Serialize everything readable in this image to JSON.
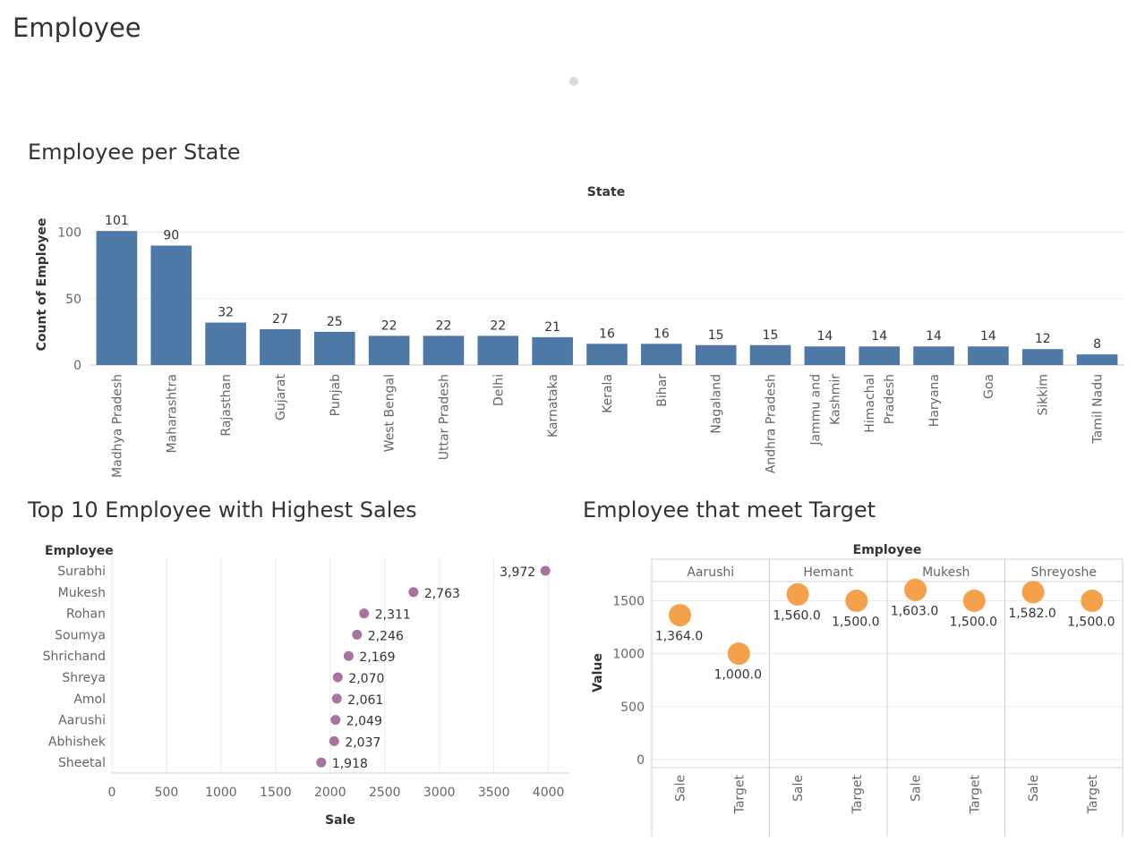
{
  "dashboard_title": "Employee",
  "chart_data": [
    {
      "type": "bar",
      "title": "Employee per State",
      "header": "State",
      "ylabel": "Count of Employee",
      "yticks": [
        "0",
        "50",
        "100"
      ],
      "ylim": [
        0,
        120
      ],
      "categories": [
        "Madhya Pradesh",
        "Maharashtra",
        "Rajasthan",
        "Gujarat",
        "Punjab",
        "West Bengal",
        "Uttar Pradesh",
        "Delhi",
        "Karnataka",
        "Kerala",
        "Bihar",
        "Nagaland",
        "Andhra Pradesh",
        "Jammu and Kashmir",
        "Himachal Pradesh",
        "Haryana",
        "Goa",
        "Sikkim",
        "Tamil Nadu"
      ],
      "category_lines": [
        [
          "Madhya Pradesh"
        ],
        [
          "Maharashtra"
        ],
        [
          "Rajasthan"
        ],
        [
          "Gujarat"
        ],
        [
          "Punjab"
        ],
        [
          "West Bengal"
        ],
        [
          "Uttar Pradesh"
        ],
        [
          "Delhi"
        ],
        [
          "Karnataka"
        ],
        [
          "Kerala"
        ],
        [
          "Bihar"
        ],
        [
          "Nagaland"
        ],
        [
          "Andhra Pradesh"
        ],
        [
          "Jammu and",
          "Kashmir"
        ],
        [
          "Himachal",
          "Pradesh"
        ],
        [
          "Haryana"
        ],
        [
          "Goa"
        ],
        [
          "Sikkim"
        ],
        [
          "Tamil Nadu"
        ]
      ],
      "values": [
        101,
        90,
        32,
        27,
        25,
        22,
        22,
        22,
        21,
        16,
        16,
        15,
        15,
        14,
        14,
        14,
        14,
        12,
        8
      ],
      "data_labels": [
        "101",
        "90",
        "32",
        "27",
        "25",
        "22",
        "22",
        "22",
        "21",
        "16",
        "16",
        "15",
        "15",
        "14",
        "14",
        "14",
        "14",
        "12",
        "8"
      ],
      "color": "#4e79a7",
      "grid": true
    },
    {
      "type": "scatter",
      "title": "Top 10 Employee with Highest Sales",
      "row_header": "Employee",
      "xlabel": "Sale",
      "xticks": [
        "0",
        "500",
        "1000",
        "1500",
        "2000",
        "2500",
        "3000",
        "3500",
        "4000"
      ],
      "xlim": [
        0,
        4200
      ],
      "categories": [
        "Surabhi",
        "Mukesh",
        "Rohan",
        "Soumya",
        "Shrichand",
        "Shreya",
        "Amol",
        "Aarushi",
        "Abhishek",
        "Sheetal"
      ],
      "values": [
        3972,
        2763,
        2311,
        2246,
        2169,
        2070,
        2061,
        2049,
        2037,
        1918
      ],
      "data_labels": [
        "3,972",
        "2,763",
        "2,311",
        "2,246",
        "2,169",
        "2,070",
        "2,061",
        "2,049",
        "2,037",
        "1,918"
      ],
      "color": "#a8739f",
      "grid": true
    },
    {
      "type": "scatter",
      "title": "Employee that meet Target",
      "header": "Employee",
      "ylabel": "Value",
      "yticks": [
        "0",
        "500",
        "1000",
        "1500"
      ],
      "ylim": [
        0,
        1800
      ],
      "groups": [
        "Aarushi",
        "Hemant",
        "Mukesh",
        "Shreyoshe"
      ],
      "measures": [
        "Sale",
        "Target"
      ],
      "values": [
        [
          1364,
          1000
        ],
        [
          1560,
          1500
        ],
        [
          1603,
          1500
        ],
        [
          1582,
          1500
        ]
      ],
      "data_labels": [
        [
          "1,364.0",
          "1,000.0"
        ],
        [
          "1,560.0",
          "1,500.0"
        ],
        [
          "1,603.0",
          "1,500.0"
        ],
        [
          "1,582.0",
          "1,500.0"
        ]
      ],
      "color": "#f5a04a",
      "grid": true
    }
  ]
}
